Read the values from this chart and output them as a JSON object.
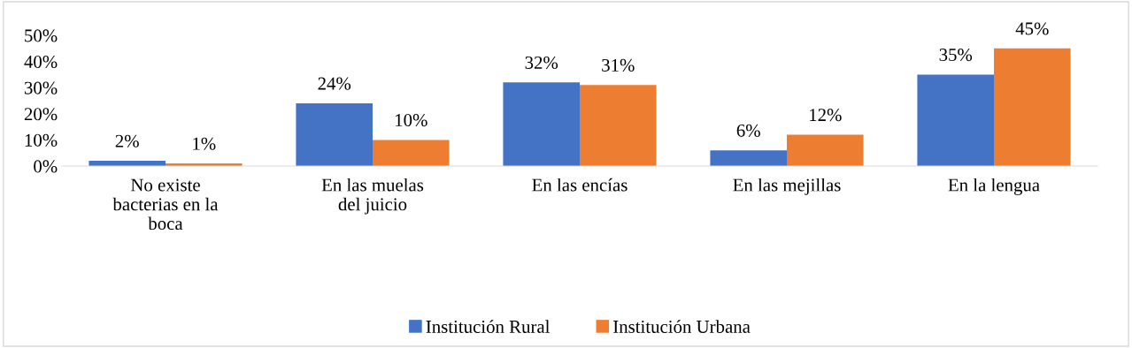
{
  "chart_data": {
    "type": "bar",
    "categories": [
      "No existe bacterias en la boca",
      "En las muelas del juicio",
      "En las encías",
      "En las mejillas",
      "En la lengua"
    ],
    "series": [
      {
        "name": "Institución Rural",
        "color": "#4472c4",
        "values": [
          2,
          24,
          32,
          6,
          35
        ],
        "value_labels": [
          "2%",
          "24%",
          "32%",
          "6%",
          "35%"
        ]
      },
      {
        "name": "Institución Urbana",
        "color": "#ed7d31",
        "values": [
          1,
          10,
          31,
          12,
          45
        ],
        "value_labels": [
          "1%",
          "10%",
          "31%",
          "12%",
          "45%"
        ]
      }
    ],
    "ylim": [
      0,
      50
    ],
    "yticks": [
      {
        "value": 0,
        "label": "0%"
      },
      {
        "value": 10,
        "label": "10%"
      },
      {
        "value": 20,
        "label": "20%"
      },
      {
        "value": 30,
        "label": "30%"
      },
      {
        "value": 40,
        "label": "40%"
      },
      {
        "value": 50,
        "label": "50%"
      }
    ],
    "legend": "bottom",
    "grid": false
  }
}
